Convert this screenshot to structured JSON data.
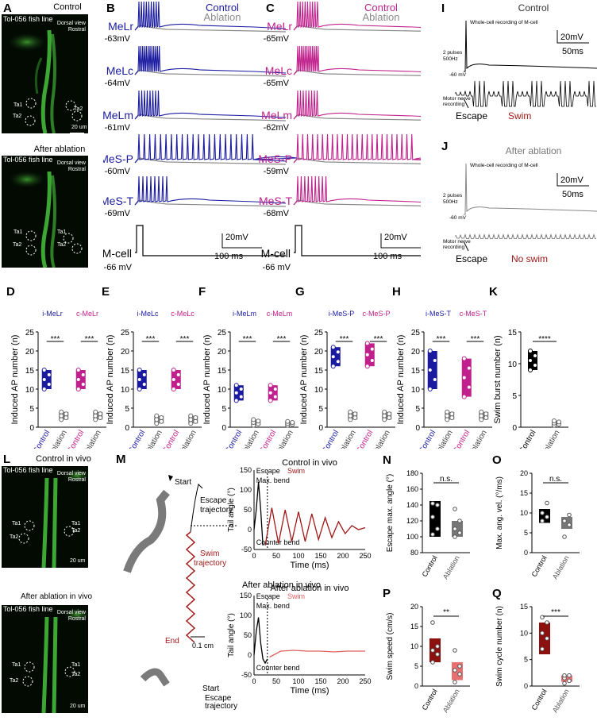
{
  "colors": {
    "control_blue": "#1a1aa0",
    "control_magenta": "#c0208c",
    "ablation_gray": "#8a8a8a",
    "swim_red": "#a01818",
    "black": "#000000",
    "swim_light": "#e06060"
  },
  "panels": {
    "A": "A",
    "B": "B",
    "C": "C",
    "D": "D",
    "E": "E",
    "F": "F",
    "G": "G",
    "H": "H",
    "I": "I",
    "J": "J",
    "K": "K",
    "L": "L",
    "M": "M",
    "N": "N",
    "O": "O",
    "P": "P",
    "Q": "Q"
  },
  "panel_a": {
    "title_top": "Control",
    "title_bottom": "After ablation",
    "fish_line": "Tol-056 fish line",
    "dorsal_view": "Dorsal view",
    "rostral": "Rostral",
    "ta1": "Ta1",
    "ta2": "Ta2",
    "scale": "20 um"
  },
  "panel_l": {
    "title_top": "Control in vivo",
    "title_bottom": "After ablation  in vivo",
    "fish_line": "Tol-056 fish line",
    "dorsal_view": "Dorsal view",
    "rostral": "Rostral",
    "ta1": "Ta1",
    "ta2": "Ta2",
    "scale": "20 um"
  },
  "panel_b": {
    "legend_control": "Control",
    "legend_ablation": "Ablation",
    "cells": [
      {
        "name": "MeLr",
        "mv": "-63mV"
      },
      {
        "name": "MeLc",
        "mv": "-64mV"
      },
      {
        "name": "MeLm",
        "mv": "-61mV"
      },
      {
        "name": "MeS-P",
        "mv": "-60mV"
      },
      {
        "name": "MeS-T",
        "mv": "-69mV"
      }
    ],
    "mcell": "M-cell",
    "mcell_mv": "-66 mV",
    "scale_v": "20mV",
    "scale_t": "100 ms"
  },
  "panel_c": {
    "legend_control": "Control",
    "legend_ablation": "Ablation",
    "cells": [
      {
        "name": "MeLr",
        "mv": "-65mV"
      },
      {
        "name": "MeLc",
        "mv": "-65mV"
      },
      {
        "name": "MeLm",
        "mv": "-62mV"
      },
      {
        "name": "MeS-P",
        "mv": "-59mV"
      },
      {
        "name": "MeS-T",
        "mv": "-68mV"
      }
    ],
    "mcell": "M-cell",
    "mcell_mv": "-66 mV",
    "scale_v": "20mV",
    "scale_t": "100 ms"
  },
  "panel_i": {
    "title": "Control",
    "whole_cell": "Whole-cell recording of M-cell",
    "pulses1": "2 pulses",
    "pulses2": "500Hz",
    "mv": "-60 mV",
    "motor1": "Motor nerve",
    "motor2": "recording",
    "escape": "Escape",
    "swim": "Swim",
    "scale_v": "20mV",
    "scale_t": "50ms"
  },
  "panel_j": {
    "title": "After ablation",
    "whole_cell": "Whole-cell recording of M-cell",
    "pulses1": "2 pulses",
    "pulses2": "500Hz",
    "mv": "-60 mV",
    "motor1": "Motor nerve",
    "motor2": "recording",
    "escape": "Escape",
    "swim": "No swim",
    "scale_v": "20mV",
    "scale_t": "50ms"
  },
  "bar_panels": [
    {
      "id": "D",
      "ylabel": "Induced AP number (n)",
      "labels": [
        "i-MeLr",
        "c-MeLr"
      ],
      "ylim": [
        0,
        25
      ],
      "ticks": [
        0,
        5,
        10,
        15,
        20,
        25
      ],
      "groups": [
        {
          "name": "Control",
          "values": [
            10,
            15
          ],
          "color": "blue"
        },
        {
          "name": "Ablation",
          "values": [
            2,
            4
          ],
          "color": "gray"
        },
        {
          "name": "Control",
          "values": [
            10,
            15
          ],
          "color": "magenta"
        },
        {
          "name": "Ablation",
          "values": [
            2,
            4
          ],
          "color": "gray"
        }
      ],
      "sig": [
        "***",
        "***"
      ]
    },
    {
      "id": "E",
      "ylabel": "Induced AP number (n)",
      "labels": [
        "i-MeLc",
        "c-MeLc"
      ],
      "ylim": [
        0,
        25
      ],
      "ticks": [
        0,
        5,
        10,
        15,
        20,
        25
      ],
      "groups": [
        {
          "name": "Control",
          "values": [
            10,
            15
          ],
          "color": "blue"
        },
        {
          "name": "Ablation",
          "values": [
            1,
            3
          ],
          "color": "gray"
        },
        {
          "name": "Control",
          "values": [
            10,
            15
          ],
          "color": "magenta"
        },
        {
          "name": "Ablation",
          "values": [
            1,
            3
          ],
          "color": "gray"
        }
      ],
      "sig": [
        "***",
        "***"
      ]
    },
    {
      "id": "F",
      "ylabel": "Induced AP number (n)",
      "labels": [
        "i-MeLm",
        "c-MeLm"
      ],
      "ylim": [
        0,
        25
      ],
      "ticks": [
        0,
        5,
        10,
        15,
        20,
        25
      ],
      "groups": [
        {
          "name": "Control",
          "values": [
            7,
            11
          ],
          "color": "blue"
        },
        {
          "name": "Ablation",
          "values": [
            0.5,
            2
          ],
          "color": "gray"
        },
        {
          "name": "Control",
          "values": [
            7,
            11
          ],
          "color": "magenta"
        },
        {
          "name": "Ablation",
          "values": [
            0.5,
            1.5
          ],
          "color": "gray"
        }
      ],
      "sig": [
        "***",
        "***"
      ]
    },
    {
      "id": "G",
      "ylabel": "Induced AP number (n)",
      "labels": [
        "i-MeS-P",
        "c-MeS-P"
      ],
      "ylim": [
        0,
        25
      ],
      "ticks": [
        0,
        5,
        10,
        15,
        20,
        25
      ],
      "groups": [
        {
          "name": "Control",
          "values": [
            16,
            21
          ],
          "color": "blue"
        },
        {
          "name": "Ablation",
          "values": [
            2,
            4
          ],
          "color": "gray"
        },
        {
          "name": "Control",
          "values": [
            16,
            22
          ],
          "color": "magenta"
        },
        {
          "name": "Ablation",
          "values": [
            2,
            4
          ],
          "color": "gray"
        }
      ],
      "sig": [
        "***",
        "***"
      ]
    },
    {
      "id": "H",
      "ylabel": "Induced AP number (n)",
      "labels": [
        "i-MeS-T",
        "c-MeS-T"
      ],
      "ylim": [
        0,
        25
      ],
      "ticks": [
        0,
        5,
        10,
        15,
        20,
        25
      ],
      "groups": [
        {
          "name": "Control",
          "values": [
            10,
            20
          ],
          "color": "blue"
        },
        {
          "name": "Ablation",
          "values": [
            2,
            4
          ],
          "color": "gray"
        },
        {
          "name": "Control",
          "values": [
            8,
            18
          ],
          "color": "magenta"
        },
        {
          "name": "Ablation",
          "values": [
            2,
            4
          ],
          "color": "gray"
        }
      ],
      "sig": [
        "***",
        "***"
      ]
    },
    {
      "id": "K",
      "ylabel": "Swim burst number (n)",
      "labels": [],
      "ylim": [
        0,
        15
      ],
      "ticks": [
        0,
        5,
        10,
        15
      ],
      "groups": [
        {
          "name": "Control",
          "values": [
            9,
            12
          ],
          "color": "black"
        },
        {
          "name": "Ablation",
          "values": [
            0.3,
            1
          ],
          "color": "gray"
        }
      ],
      "sig": [
        "****"
      ]
    }
  ],
  "chart_data": [
    {
      "type": "line",
      "title": "Control in vivo",
      "xlabel": "Time (ms)",
      "ylabel": "Tail angle (°)",
      "ylim": [
        -50,
        150
      ],
      "xlim": [
        0,
        250
      ],
      "annotations": [
        "Escape",
        "Swim",
        "Max. bend",
        "Counter bend"
      ],
      "series": [
        {
          "name": "Escape",
          "x": [
            0,
            5,
            10,
            15,
            20
          ],
          "y": [
            0,
            50,
            120,
            50,
            -40
          ]
        },
        {
          "name": "Swim",
          "x": [
            25,
            40,
            55,
            70,
            85,
            100,
            115,
            130,
            145,
            160,
            175,
            190,
            205,
            220,
            235,
            250
          ],
          "y": [
            -40,
            55,
            -35,
            50,
            -30,
            45,
            -30,
            40,
            -25,
            30,
            -20,
            20,
            -10,
            10,
            0,
            5
          ]
        }
      ]
    },
    {
      "type": "line",
      "title": "After ablation  in vivo",
      "xlabel": "Time (ms)",
      "ylabel": "Tail angle (°)",
      "ylim": [
        -50,
        150
      ],
      "xlim": [
        0,
        250
      ],
      "annotations": [
        "Escape",
        "Swim",
        "Max. bend",
        "Counter bend"
      ],
      "series": [
        {
          "name": "Escape",
          "x": [
            0,
            5,
            10,
            15,
            20,
            25,
            30
          ],
          "y": [
            0,
            60,
            95,
            30,
            -10,
            -20,
            -10
          ]
        },
        {
          "name": "Swim",
          "x": [
            35,
            60,
            90,
            120,
            150,
            180,
            210,
            250
          ],
          "y": [
            -5,
            10,
            12,
            10,
            10,
            8,
            10,
            10
          ]
        }
      ]
    }
  ],
  "panel_m": {
    "start": "Start",
    "escape_traj1": "Escape",
    "escape_traj2": "trajectory",
    "swim_traj1": "Swim",
    "swim_traj2": "trajectory",
    "end": "End",
    "scale": "0.1 cm",
    "title_top": "Control in vivo",
    "title_bottom": "After ablation  in vivo",
    "escape": "Escape",
    "swim": "Swim",
    "max_bend": "Max. bend",
    "counter_bend": "Counter bend",
    "ylabel": "Tail angle (°)",
    "xlabel": "Time (ms)",
    "ticks_y": [
      "150",
      "100",
      "50",
      "0",
      "-50"
    ],
    "ticks_x": [
      "0",
      "50",
      "100",
      "150",
      "200",
      "250"
    ]
  },
  "box_panels": [
    {
      "id": "N",
      "ylabel": "Escape max. angle (°)",
      "ticks": [
        80,
        100,
        120,
        140,
        160,
        180
      ],
      "sig": "n.s.",
      "cats": [
        "Control",
        "Ablation"
      ]
    },
    {
      "id": "O",
      "ylabel": "Max. ang. vel. (°/ms)",
      "ticks": [
        0,
        5,
        10,
        15,
        20
      ],
      "sig": "n.s.",
      "cats": [
        "Control",
        "Ablation"
      ]
    },
    {
      "id": "P",
      "ylabel": "Swim speed (cm/s)",
      "ticks": [
        0,
        5,
        10,
        15,
        20
      ],
      "sig": "**",
      "cats": [
        "Control",
        "Ablation"
      ]
    },
    {
      "id": "Q",
      "ylabel": "Swim cycle number (n)",
      "ticks": [
        0,
        5,
        10,
        15
      ],
      "sig": "***",
      "cats": [
        "Control",
        "Ablation"
      ]
    }
  ]
}
